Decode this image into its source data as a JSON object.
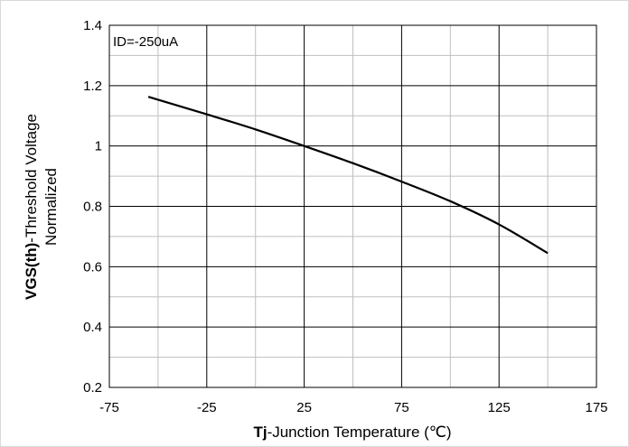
{
  "chart_data": {
    "type": "line",
    "annotation": "ID=-250uA",
    "xlabel": {
      "bold": "Tj",
      "rest": "-Junction  Temperature  (℃)"
    },
    "ylabel": {
      "line1_bold": "VGS(th)",
      "line1_rest": "-Threshold  Voltage",
      "line2": "Normalized"
    },
    "xlim": [
      -75,
      175
    ],
    "ylim": [
      0.2,
      1.4
    ],
    "x_ticks": [
      -75,
      -25,
      25,
      75,
      125,
      175
    ],
    "x_tick_labels": [
      "-75",
      "-25",
      "25",
      "75",
      "125",
      "175"
    ],
    "x_minor_step": 25,
    "y_ticks": [
      0.2,
      0.4,
      0.6,
      0.8,
      1.0,
      1.2,
      1.4
    ],
    "y_tick_labels": [
      "0.2",
      "0.4",
      "0.6",
      "0.8",
      "1",
      "1.2",
      "1.4"
    ],
    "y_minor_step": 0.1,
    "grid": true,
    "series": [
      {
        "x": [
          -55,
          -25,
          0,
          25,
          50,
          75,
          100,
          125,
          150
        ],
        "y": [
          1.163,
          1.105,
          1.055,
          1.0,
          0.943,
          0.882,
          0.817,
          0.74,
          0.645
        ],
        "color": "#000000"
      }
    ]
  }
}
